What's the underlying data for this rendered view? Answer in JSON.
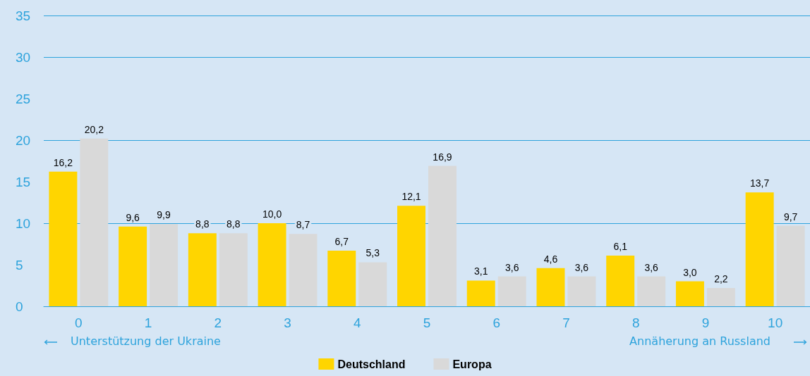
{
  "chart_data": {
    "type": "bar",
    "categories": [
      "0",
      "1",
      "2",
      "3",
      "4",
      "5",
      "6",
      "7",
      "8",
      "9",
      "10"
    ],
    "series": [
      {
        "name": "Deutschland",
        "color": "#ffd500",
        "values": [
          16.2,
          9.6,
          8.8,
          10.0,
          6.7,
          12.1,
          3.1,
          4.6,
          6.1,
          3.0,
          13.7
        ],
        "value_labels": [
          "16,2",
          "9,6",
          "8,8",
          "10,0",
          "6,7",
          "12,1",
          "3,1",
          "4,6",
          "6,1",
          "3,0",
          "13,7"
        ]
      },
      {
        "name": "Europa",
        "color": "#d9d9d9",
        "values": [
          20.2,
          9.9,
          8.8,
          8.7,
          5.3,
          16.9,
          3.6,
          3.6,
          3.6,
          2.2,
          9.7
        ],
        "value_labels": [
          "20,2",
          "9,9",
          "8,8",
          "8,7",
          "5,3",
          "16,9",
          "3,6",
          "3,6",
          "3,6",
          "2,2",
          "9,7"
        ]
      }
    ],
    "ylim": [
      0,
      35
    ],
    "yticks": [
      0,
      5,
      10,
      15,
      20,
      25,
      30,
      35
    ],
    "grid": "y",
    "legend": "bottom",
    "annotations": [
      "Unterstützung der Ukraine",
      "Annäherung an Russland"
    ]
  }
}
